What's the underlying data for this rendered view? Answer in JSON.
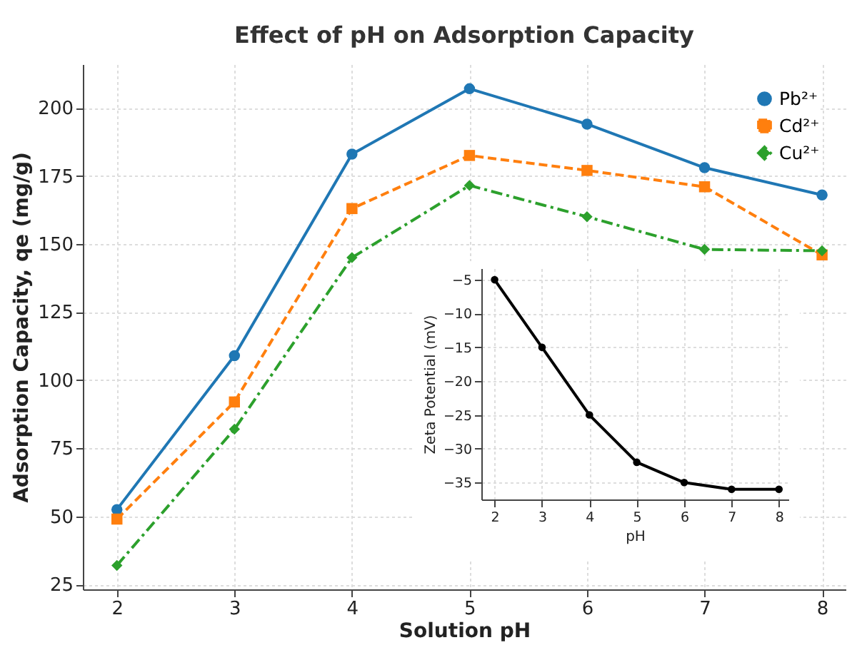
{
  "chart_data": [
    {
      "type": "line",
      "title": "Effect of pH on Adsorption Capacity",
      "xlabel": "Solution pH",
      "ylabel": "Adsorption Capacity, qe (mg/g)",
      "x": [
        2,
        3,
        4,
        5,
        6,
        7,
        8
      ],
      "series": [
        {
          "name": "Pb²⁺",
          "color": "#1f77b4",
          "marker": "circle",
          "line_style": "solid",
          "values": [
            52.5,
            109,
            183,
            207,
            194,
            178,
            168
          ]
        },
        {
          "name": "Cd²⁺",
          "color": "#ff7f0e",
          "marker": "square",
          "line_style": "dashed",
          "values": [
            49,
            92,
            163,
            182.5,
            177,
            171,
            146
          ]
        },
        {
          "name": "Cu²⁺",
          "color": "#2ca02c",
          "marker": "diamond",
          "line_style": "dashdot",
          "values": [
            32,
            82,
            145,
            171.5,
            160,
            148,
            147.5
          ]
        }
      ],
      "xlim": [
        1.71,
        8.2
      ],
      "ylim": [
        23.2,
        216
      ],
      "xticks": [
        2,
        3,
        4,
        5,
        6,
        7,
        8
      ],
      "yticks": [
        25,
        50,
        75,
        100,
        125,
        150,
        175,
        200
      ],
      "grid": true,
      "legend": "top right"
    },
    {
      "type": "line",
      "xlabel": "pH",
      "ylabel": "Zeta Potential (mV)",
      "x": [
        2,
        3,
        4,
        5,
        6,
        7,
        8
      ],
      "series": [
        {
          "color": "#000000",
          "marker": "circle",
          "line_style": "solid",
          "values": [
            -5,
            -15,
            -25,
            -32,
            -35,
            -36,
            -36
          ]
        }
      ],
      "xlim": [
        1.72,
        8.2
      ],
      "ylim": [
        -37.5,
        -3.3
      ],
      "xticks": [
        2,
        3,
        4,
        5,
        6,
        7,
        8
      ],
      "yticks": [
        -35,
        -30,
        -25,
        -20,
        -15,
        -10,
        -5
      ],
      "grid": true
    }
  ]
}
